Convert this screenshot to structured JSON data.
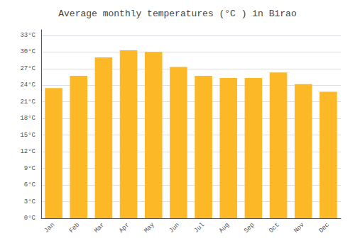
{
  "chart_data": {
    "type": "bar",
    "title": "Average monthly temperatures (°C ) in Birao",
    "categories": [
      "Jan",
      "Feb",
      "Mar",
      "Apr",
      "May",
      "Jun",
      "Jul",
      "Aug",
      "Sep",
      "Oct",
      "Nov",
      "Dec"
    ],
    "values": [
      23.5,
      25.7,
      29.0,
      30.3,
      30.0,
      27.3,
      25.7,
      25.3,
      25.3,
      26.3,
      24.2,
      22.8
    ],
    "color": "#FDB827",
    "ylim": [
      0,
      34
    ],
    "yticks": [
      {
        "value": 0,
        "label": "0°C"
      },
      {
        "value": 3,
        "label": "3°C"
      },
      {
        "value": 6,
        "label": "6°C"
      },
      {
        "value": 9,
        "label": "9°C"
      },
      {
        "value": 12,
        "label": "12°C"
      },
      {
        "value": 15,
        "label": "15°C"
      },
      {
        "value": 18,
        "label": "18°C"
      },
      {
        "value": 21,
        "label": "21°C"
      },
      {
        "value": 24,
        "label": "24°C"
      },
      {
        "value": 27,
        "label": "27°C"
      },
      {
        "value": 30,
        "label": "30°C"
      },
      {
        "value": 33,
        "label": "33°C"
      }
    ],
    "grid": true
  }
}
